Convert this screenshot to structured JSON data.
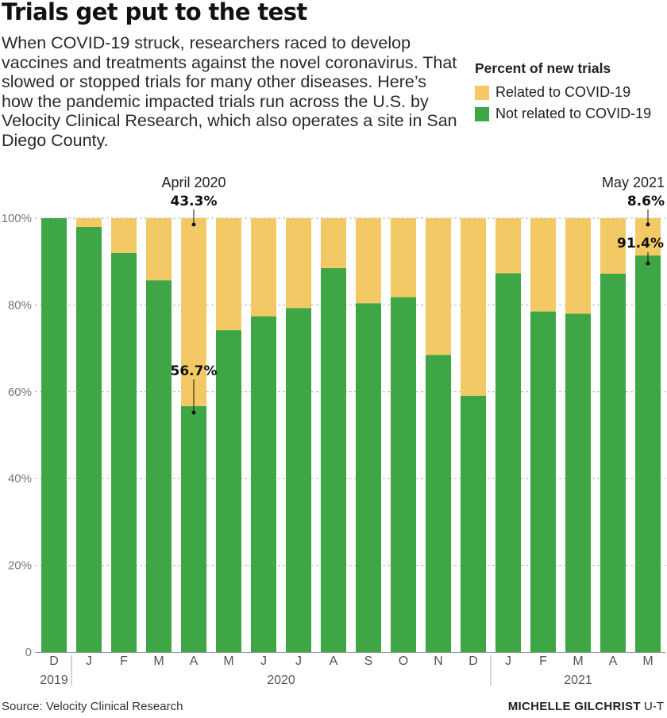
{
  "title": "Trials get put to the test",
  "subtitle": "When COVID-19 struck, researchers raced to develop vaccines and treatments against the novel coronavirus. That slowed or stopped trials for many other diseases. Here’s how the pandemic impacted trials run across the U.S. by Velocity Clinical Research, which also operates a site in San Diego County.",
  "legend": {
    "title": "Percent of new trials",
    "items": [
      {
        "label": "Related to COVID-19",
        "color": "#f3c965"
      },
      {
        "label": "Not related to COVID-19",
        "color": "#3fa646"
      }
    ]
  },
  "colors": {
    "covid": "#f3c965",
    "non_covid": "#3fa646"
  },
  "chart_data": {
    "type": "bar",
    "stacked": true,
    "categories": [
      "D",
      "J",
      "F",
      "M",
      "A",
      "M",
      "J",
      "J",
      "A",
      "S",
      "O",
      "N",
      "D",
      "J",
      "F",
      "M",
      "A",
      "M"
    ],
    "year_labels": [
      "2019",
      "2020",
      "2021"
    ],
    "series": [
      {
        "name": "Not related to COVID-19",
        "values": [
          100,
          98,
          92,
          85.7,
          56.7,
          74.2,
          77.4,
          79.3,
          88.5,
          80.4,
          81.8,
          68.5,
          59.1,
          87.3,
          78.5,
          78,
          87.2,
          91.4
        ]
      },
      {
        "name": "Related to COVID-19",
        "values": [
          0,
          2,
          8,
          14.3,
          43.3,
          25.8,
          22.6,
          20.7,
          11.5,
          19.6,
          18.2,
          31.5,
          40.9,
          12.7,
          21.5,
          22,
          12.8,
          8.6
        ]
      }
    ],
    "y_ticks": [
      "0",
      "20%",
      "40%",
      "60%",
      "80%",
      "100%"
    ],
    "ylim": [
      0,
      100
    ],
    "annotations": [
      {
        "month": "April 2020",
        "covid_value": "43.3%",
        "non_covid_value": "56.7%"
      },
      {
        "month": "May 2021",
        "covid_value": "8.6%",
        "non_covid_value": "91.4%"
      }
    ]
  },
  "footer": {
    "source": "Source: Velocity Clinical Research",
    "credit_name": "MICHELLE GILCHRIST",
    "credit_org": "U-T"
  }
}
